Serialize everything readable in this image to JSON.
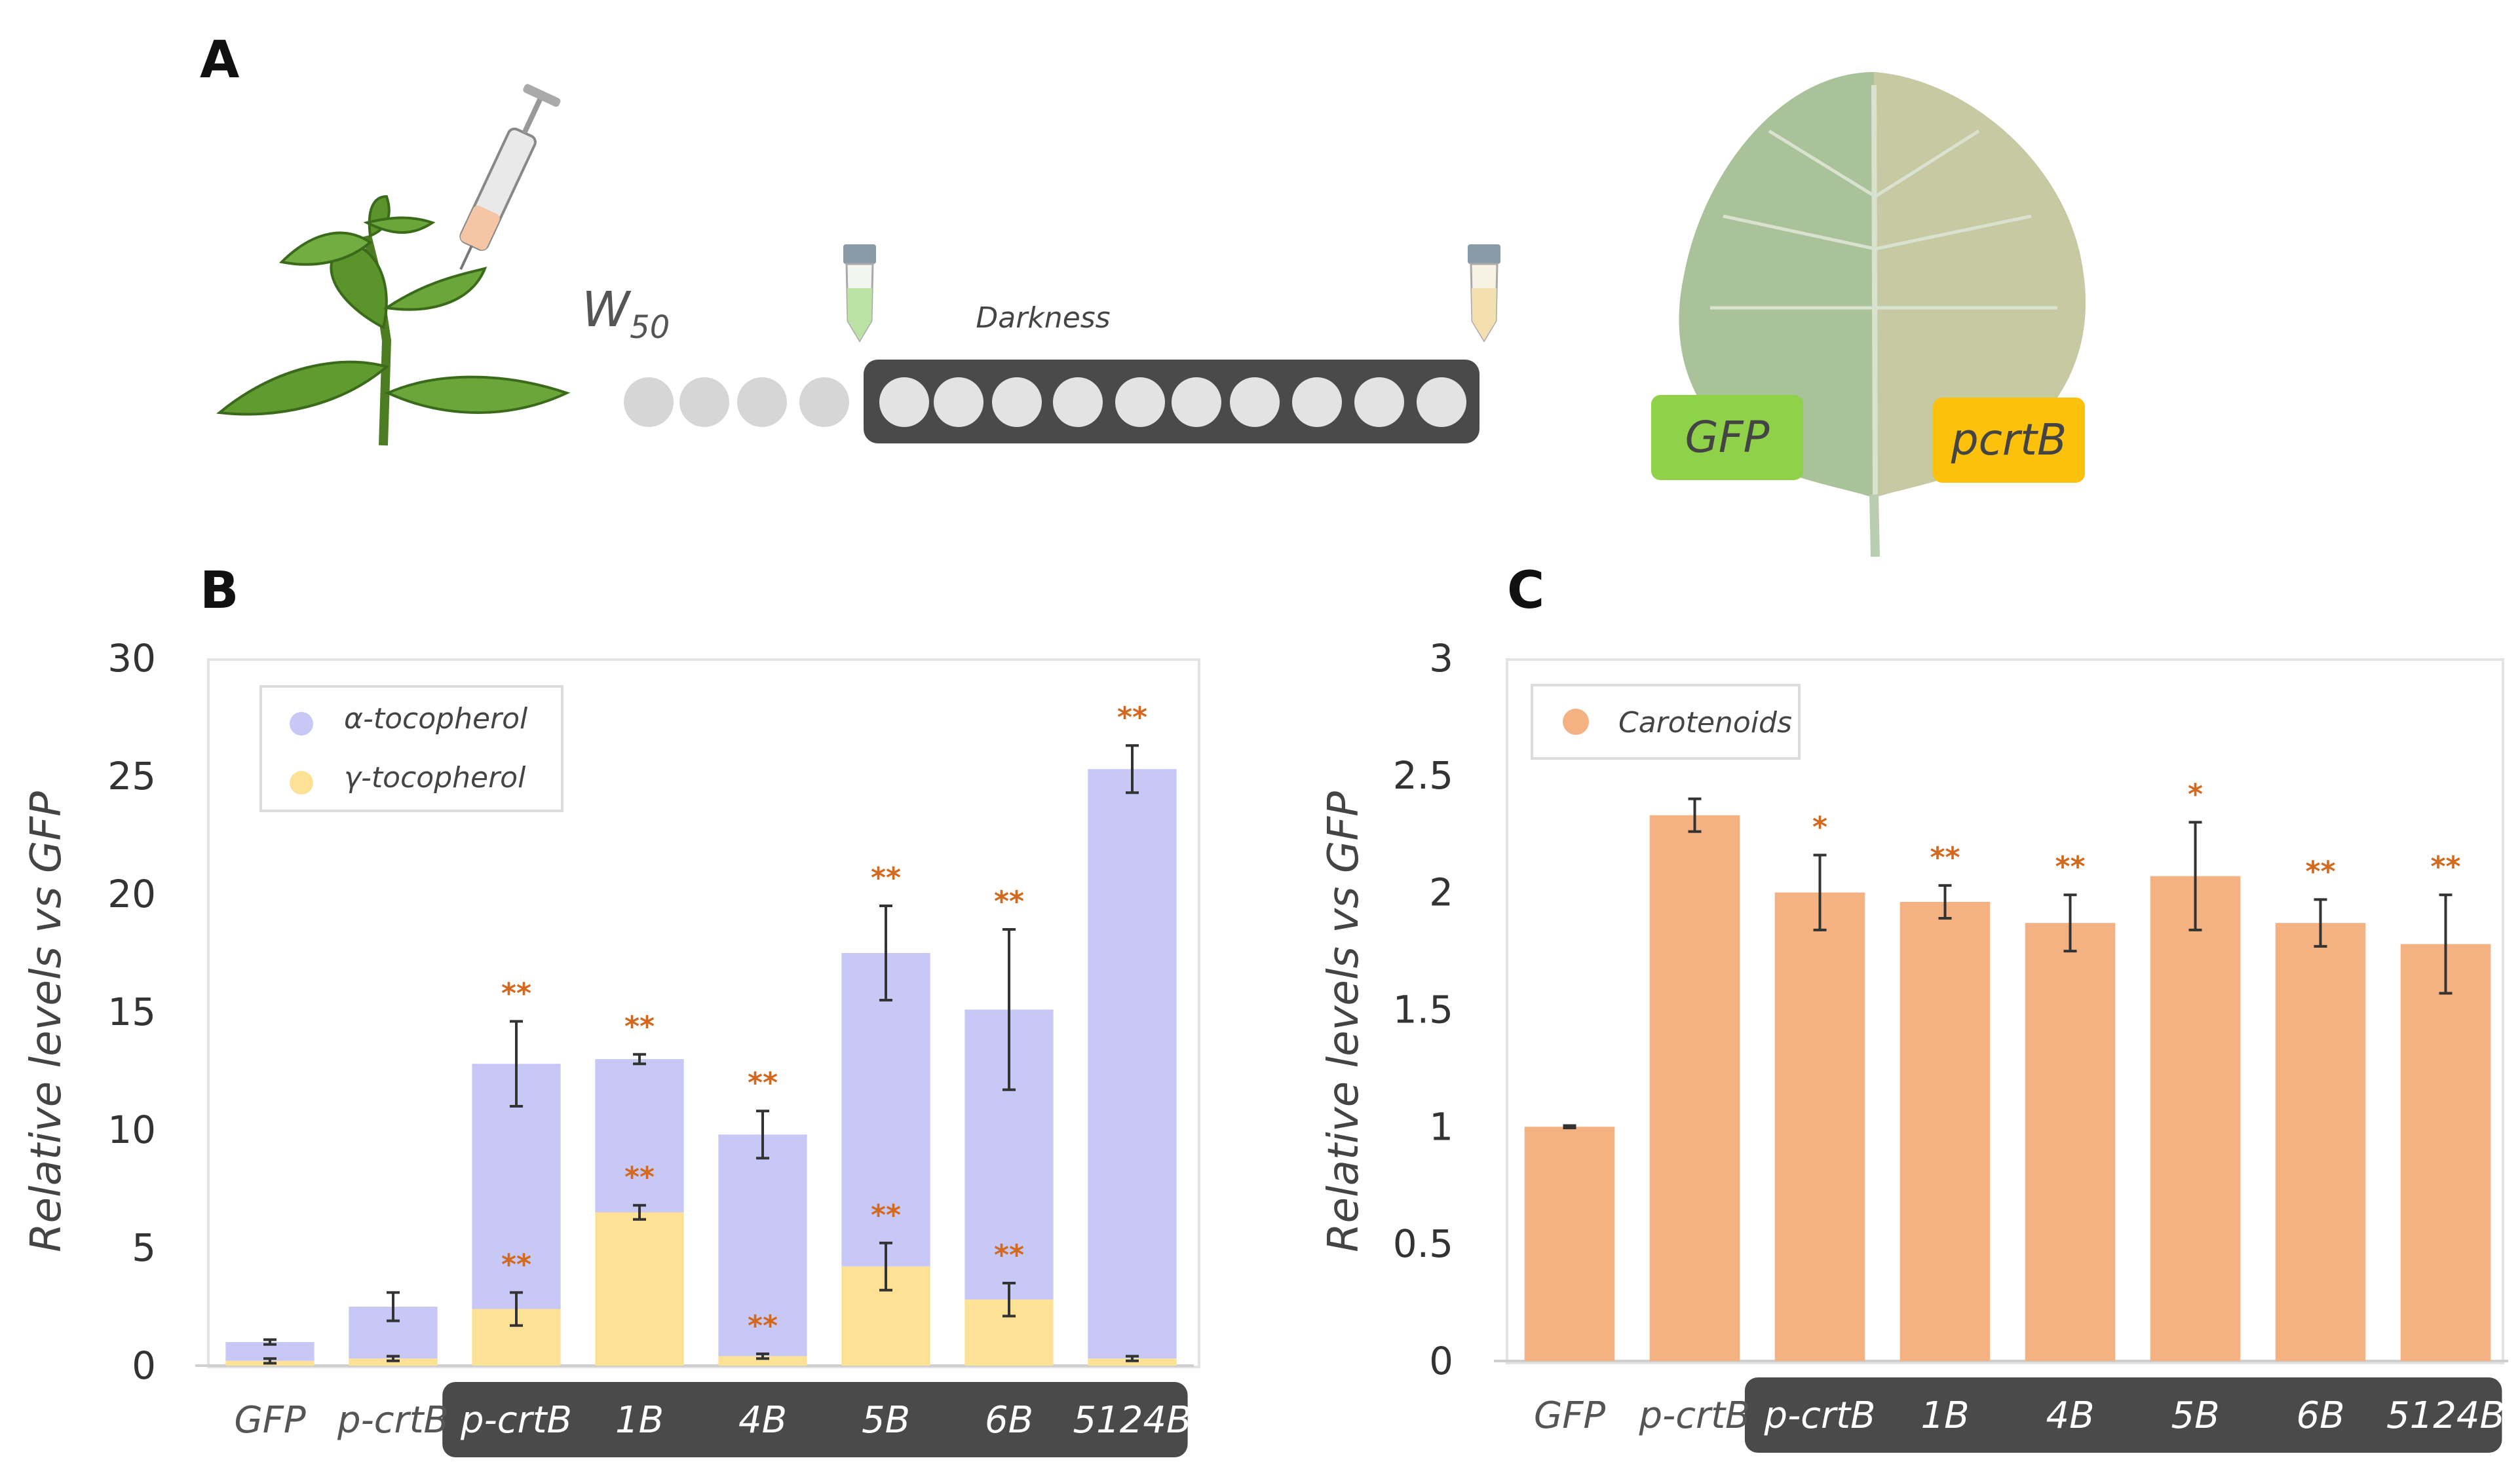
{
  "panels": {
    "a": "A",
    "b": "B",
    "c": "C"
  },
  "diagram": {
    "w_label": "W",
    "w_subscript": "50",
    "darkness_label": "Darkness",
    "leaf_labels": [
      "GFP",
      "pcrtB"
    ]
  },
  "colors": {
    "alpha": "#c8c8f6",
    "gamma": "#fde296",
    "carotenoid": "#f4b181",
    "star": "#d2691e",
    "darkbar": "#4a4a4a",
    "gfp_box": "#8fd24a",
    "pcrtb_box": "#fcc10d"
  },
  "chart_data": [
    {
      "type": "bar",
      "stacked": true,
      "panel": "B",
      "ylabel": "Relative levels vs GFP",
      "ylim": [
        0,
        30
      ],
      "yticks": [
        0,
        5,
        10,
        15,
        20,
        25,
        30
      ],
      "categories": [
        "GFP",
        "p-crtB",
        "p-crtB",
        "1B",
        "4B",
        "5B",
        "6B",
        "5124B"
      ],
      "highlighted_categories": [
        "p-crtB",
        "1B",
        "4B",
        "5B",
        "6B",
        "5124B"
      ],
      "legend": [
        "α-tocopherol",
        "γ-tocopherol"
      ],
      "series": [
        {
          "name": "γ-tocopherol",
          "values": [
            0.2,
            0.3,
            2.4,
            6.5,
            0.4,
            4.2,
            2.8,
            0.3
          ],
          "errors": [
            0.1,
            0.1,
            0.7,
            0.3,
            0.1,
            1.0,
            0.7,
            0.1
          ],
          "significance": [
            "",
            "",
            "**",
            "**",
            "**",
            "**",
            "**",
            ""
          ]
        },
        {
          "name": "α-tocopherol",
          "totals": [
            1.0,
            2.5,
            12.8,
            13.0,
            9.8,
            17.5,
            15.1,
            25.3
          ],
          "errors": [
            0.1,
            0.6,
            1.8,
            0.2,
            1.0,
            2.0,
            3.4,
            1.0
          ],
          "significance": [
            "",
            "",
            "**",
            "**",
            "**",
            "**",
            "**",
            "**"
          ]
        }
      ]
    },
    {
      "type": "bar",
      "panel": "C",
      "ylabel": "Relative levels vs GFP",
      "ylim": [
        0,
        3
      ],
      "yticks": [
        "0",
        "0.5",
        "1",
        "1.5",
        "2",
        "2.5",
        "3"
      ],
      "categories": [
        "GFP",
        "p-crtB",
        "p-crtB",
        "1B",
        "4B",
        "5B",
        "6B",
        "5124B"
      ],
      "highlighted_categories": [
        "p-crtB",
        "1B",
        "4B",
        "5B",
        "6B",
        "5124B"
      ],
      "legend": [
        "Carotenoids"
      ],
      "series": [
        {
          "name": "Carotenoids",
          "values": [
            1.0,
            2.33,
            2.0,
            1.96,
            1.87,
            2.07,
            1.87,
            1.78
          ],
          "errors": [
            0.005,
            0.07,
            0.16,
            0.07,
            0.12,
            0.23,
            0.1,
            0.21
          ],
          "significance": [
            "",
            "",
            "*",
            "**",
            "**",
            "*",
            "**",
            "**"
          ]
        }
      ]
    }
  ]
}
